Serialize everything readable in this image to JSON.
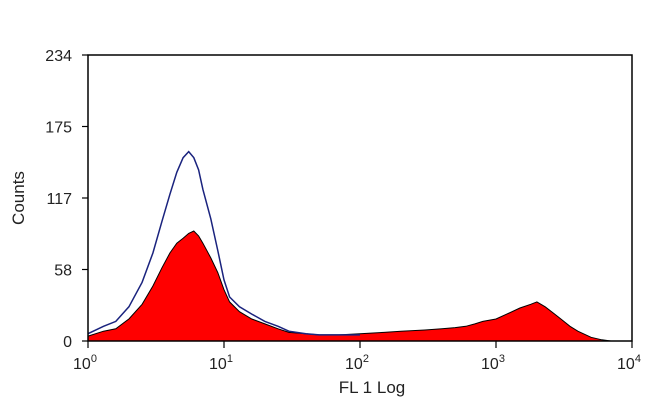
{
  "chart_data": {
    "type": "area",
    "xlabel": "FL 1 Log",
    "ylabel": "Counts",
    "x_scale": "log",
    "xlim": [
      1,
      10000
    ],
    "ylim": [
      0,
      234
    ],
    "y_ticks": [
      "0",
      "58",
      "117",
      "175",
      "234"
    ],
    "x_ticks": [
      {
        "base": "10",
        "exp": "0",
        "value": 1
      },
      {
        "base": "10",
        "exp": "1",
        "value": 10
      },
      {
        "base": "10",
        "exp": "2",
        "value": 100
      },
      {
        "base": "10",
        "exp": "3",
        "value": 1000
      },
      {
        "base": "10",
        "exp": "4",
        "value": 10000
      }
    ],
    "colors": {
      "filled": "#ff0000",
      "outline": "#1a237e",
      "filled_edge": "#000000"
    },
    "series": [
      {
        "style": "filled",
        "x": [
          1,
          1.3,
          1.6,
          2,
          2.5,
          3,
          3.5,
          4,
          4.5,
          5,
          5.5,
          6,
          6.5,
          7,
          8,
          9,
          10,
          11,
          13,
          16,
          20,
          25,
          30,
          40,
          50,
          70,
          100,
          150,
          200,
          300,
          400,
          500,
          600,
          700,
          800,
          1000,
          1200,
          1500,
          1800,
          2000,
          2300,
          2700,
          3000,
          3500,
          4000,
          5000,
          6000,
          7000
        ],
        "y": [
          4,
          8,
          10,
          18,
          30,
          45,
          60,
          72,
          80,
          84,
          88,
          90,
          86,
          80,
          68,
          56,
          42,
          32,
          24,
          18,
          14,
          10,
          7,
          6,
          5,
          5,
          6,
          7,
          8,
          9,
          10,
          11,
          12,
          14,
          16,
          18,
          22,
          27,
          30,
          32,
          28,
          22,
          18,
          12,
          8,
          3,
          1,
          0
        ]
      },
      {
        "style": "outline",
        "x": [
          1,
          1.3,
          1.6,
          2,
          2.5,
          3,
          3.5,
          4,
          4.5,
          5,
          5.5,
          6,
          6.5,
          7,
          8,
          9,
          10,
          11,
          13,
          16,
          20,
          25,
          30,
          40,
          50,
          70,
          100
        ],
        "y": [
          6,
          12,
          16,
          28,
          48,
          72,
          98,
          120,
          138,
          150,
          155,
          150,
          140,
          124,
          100,
          74,
          50,
          36,
          28,
          22,
          16,
          12,
          8,
          6,
          5,
          5,
          5
        ]
      }
    ]
  }
}
